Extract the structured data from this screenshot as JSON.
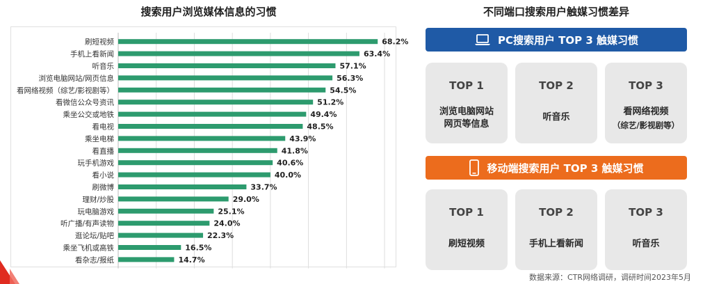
{
  "left_title": "搜索用户浏览媒体信息的习惯",
  "right_title": "不同端口搜索用户触媒习惯差异",
  "chart_data": {
    "type": "bar",
    "orientation": "horizontal",
    "title": "搜索用户浏览媒体信息的习惯",
    "categories": [
      "刷短视频",
      "手机上看新闻",
      "听音乐",
      "浏览电脑网站/网页信息",
      "看网络视频（综艺/影视剧等）",
      "看微信公众号资讯",
      "乘坐公交或地铁",
      "看电视",
      "乘坐电梯",
      "看直播",
      "玩手机游戏",
      "看小说",
      "刷微博",
      "理财/炒股",
      "玩电脑游戏",
      "听广播/有声读物",
      "逛论坛/贴吧",
      "乘坐飞机或高铁",
      "看杂志/报纸"
    ],
    "values": [
      68.2,
      63.4,
      57.1,
      56.3,
      54.5,
      51.2,
      49.4,
      48.5,
      43.9,
      41.8,
      40.6,
      40.0,
      33.7,
      29.0,
      25.1,
      24.0,
      22.3,
      16.5,
      14.7
    ],
    "value_labels": [
      "68.2%",
      "63.4%",
      "57.1%",
      "56.3%",
      "54.5%",
      "51.2%",
      "49.4%",
      "48.5%",
      "43.9%",
      "41.8%",
      "40.6%",
      "40.0%",
      "33.7%",
      "29.0%",
      "25.1%",
      "24.0%",
      "22.3%",
      "16.5%",
      "14.7%"
    ],
    "unit": "%",
    "xlim": [
      0,
      72
    ],
    "bar_color": "#2d9b6e",
    "grid": true
  },
  "pc": {
    "banner": "PC搜索用户 TOP 3 触媒习惯",
    "icon": "laptop-icon",
    "cards": [
      {
        "rank": "TOP 1",
        "line1": "浏览电脑网站",
        "line2": "网页等信息"
      },
      {
        "rank": "TOP 2",
        "line1": "听音乐",
        "line2": ""
      },
      {
        "rank": "TOP 3",
        "line1": "看网络视频",
        "line2": "（综艺/影视剧等）"
      }
    ]
  },
  "mobile": {
    "banner": "移动端搜索用户 TOP 3 触媒习惯",
    "icon": "smartphone-icon",
    "cards": [
      {
        "rank": "TOP 1",
        "line1": "刷短视频"
      },
      {
        "rank": "TOP 2",
        "line1": "手机上看新闻"
      },
      {
        "rank": "TOP 3",
        "line1": "听音乐"
      }
    ]
  },
  "colors": {
    "pc_blue": "#1f5aa6",
    "mobile_orange": "#ec6c1d",
    "card_gray": "#e8e8e8",
    "bar_green": "#2d9b6e"
  },
  "source": "数据来源：CTR网络调研，调研时间2023年5月"
}
